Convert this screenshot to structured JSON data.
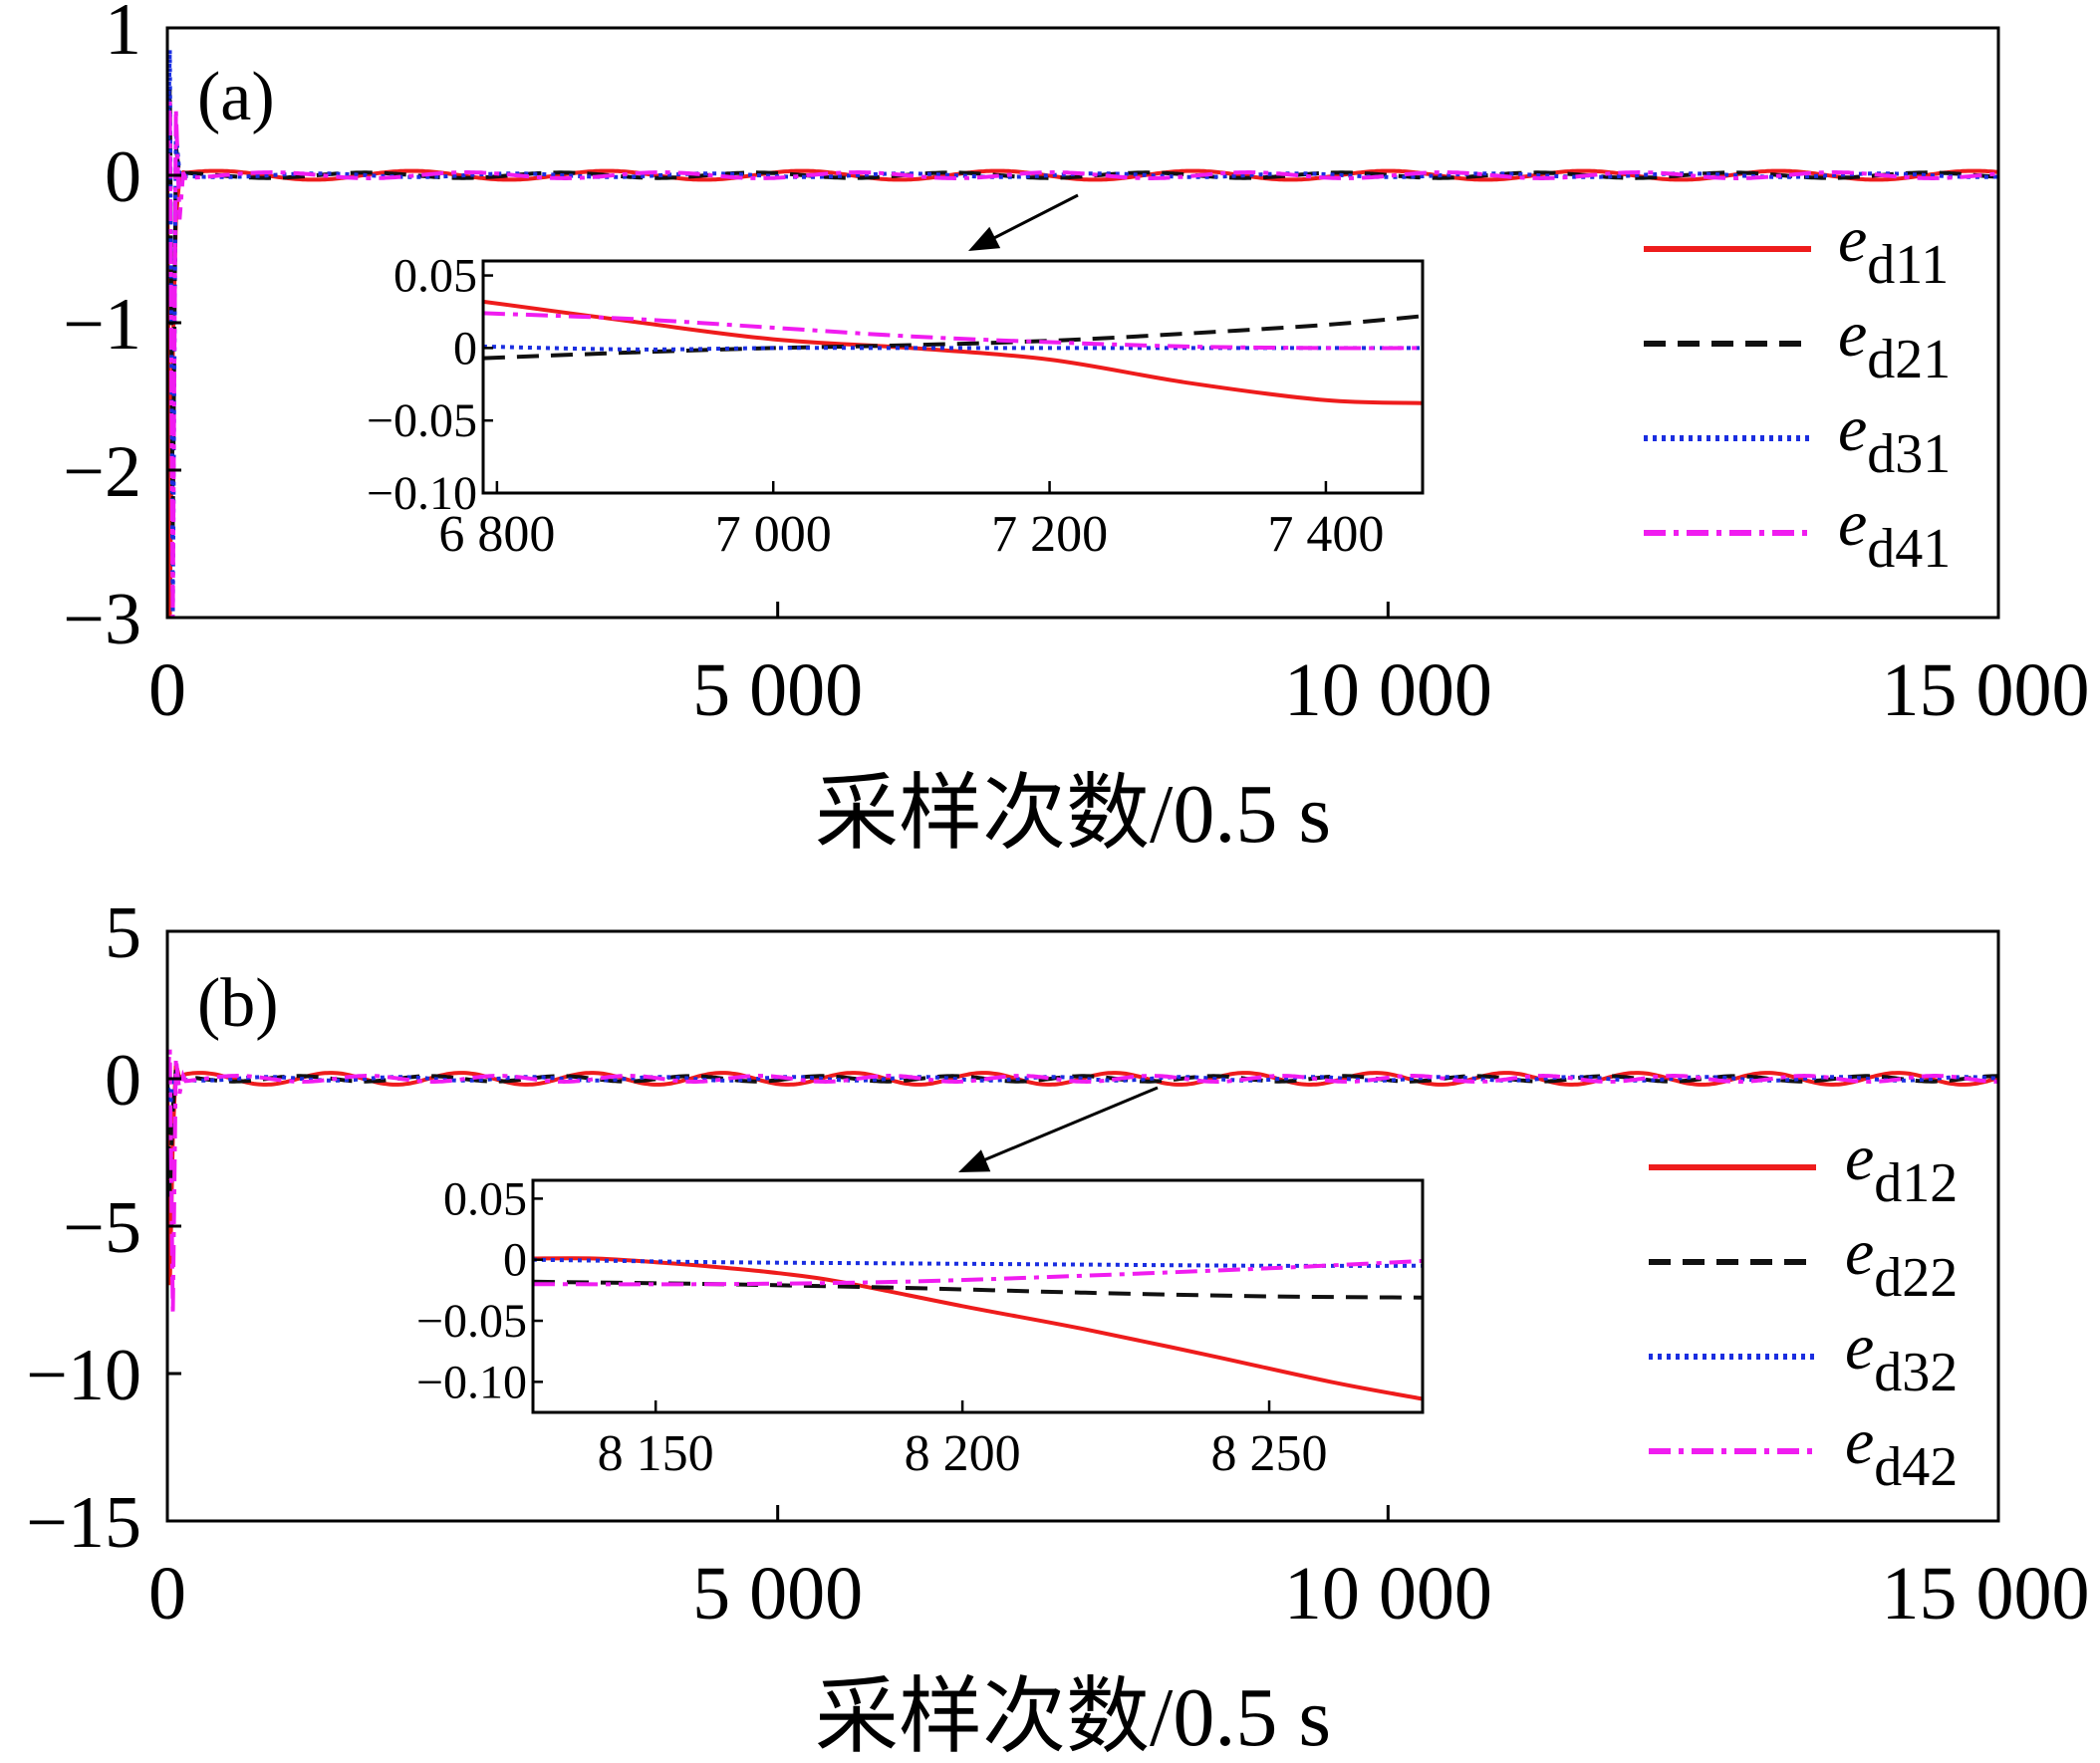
{
  "colors": {
    "red": "#ee1c1c",
    "black": "#111111",
    "blue": "#1a2ee0",
    "magenta": "#f01cf0"
  },
  "chart_data": [
    {
      "type": "line",
      "panel_label": "(a)",
      "xlabel": "采样次数/0.5 s",
      "xlim": [
        0,
        15000
      ],
      "ylim": [
        -3,
        1
      ],
      "xticks": [
        0,
        5000,
        10000,
        15000
      ],
      "xtick_labels": [
        "0",
        "5 000",
        "10 000",
        "15 000"
      ],
      "yticks": [
        1,
        0,
        -1,
        -2,
        -3
      ],
      "ytick_labels": [
        "1",
        "0",
        "−1",
        "−2",
        "−3"
      ],
      "legend_position": "right",
      "series": [
        {
          "name": "ed11",
          "base": "e",
          "sub": "d11",
          "color": "#ee1c1c",
          "dash": "solid",
          "transient": [
            0,
            -3,
            -1.2,
            -0.3,
            0,
            0.02
          ],
          "amp": 0.03,
          "period": 1600,
          "phase": 0
        },
        {
          "name": "ed21",
          "base": "e",
          "sub": "d21",
          "color": "#111111",
          "dash": "dashed",
          "transient": [
            0,
            0.6,
            -2.4,
            0.2,
            -0.01,
            0
          ],
          "amp": 0.018,
          "period": 1600,
          "phase": 1.5
        },
        {
          "name": "ed31",
          "base": "e",
          "sub": "d31",
          "color": "#1a2ee0",
          "dash": "dotted",
          "transient": [
            0,
            0.85,
            -3,
            0.3,
            0,
            0
          ],
          "amp": 0.012,
          "period": 1600,
          "phase": 3.0
        },
        {
          "name": "ed41",
          "base": "e",
          "sub": "d41",
          "color": "#f01cf0",
          "dash": "dashdot",
          "transient": [
            0,
            0.5,
            -3,
            0.45,
            -0.3,
            0.02
          ],
          "amp": 0.02,
          "period": 1600,
          "phase": 4.5
        }
      ],
      "inset": {
        "xlim": [
          6790,
          7470
        ],
        "ylim": [
          -0.1,
          0.06
        ],
        "xticks": [
          6800,
          7000,
          7200,
          7400
        ],
        "xtick_labels": [
          "6 800",
          "7 000",
          "7 200",
          "7 400"
        ],
        "yticks": [
          0.05,
          0,
          -0.05,
          -0.1
        ],
        "ytick_labels": [
          "0.05",
          "0",
          "−0.05",
          "−0.10"
        ],
        "series": [
          {
            "name": "ed11",
            "x": [
              6790,
              6900,
              7000,
              7100,
              7200,
              7300,
              7400,
              7470
            ],
            "y": [
              0.032,
              0.018,
              0.006,
              0.0,
              -0.008,
              -0.024,
              -0.036,
              -0.038
            ]
          },
          {
            "name": "ed21",
            "x": [
              6790,
              6900,
              7000,
              7100,
              7200,
              7300,
              7400,
              7470
            ],
            "y": [
              -0.007,
              -0.003,
              0.0,
              0.002,
              0.005,
              0.01,
              0.016,
              0.022
            ]
          },
          {
            "name": "ed31",
            "x": [
              6790,
              6900,
              7000,
              7100,
              7200,
              7300,
              7400,
              7470
            ],
            "y": [
              0.001,
              -0.001,
              0.0,
              0.0,
              0.0,
              0.0,
              0.0,
              0.0
            ]
          },
          {
            "name": "ed41",
            "x": [
              6790,
              6900,
              7000,
              7100,
              7200,
              7300,
              7400,
              7470
            ],
            "y": [
              0.024,
              0.02,
              0.014,
              0.008,
              0.004,
              0.001,
              0.0,
              0.0
            ]
          }
        ]
      }
    },
    {
      "type": "line",
      "panel_label": "(b)",
      "xlabel": "采样次数/0.5 s",
      "xlim": [
        0,
        15000
      ],
      "ylim": [
        -15,
        5
      ],
      "xticks": [
        0,
        5000,
        10000,
        15000
      ],
      "xtick_labels": [
        "0",
        "5 000",
        "10 000",
        "15 000"
      ],
      "yticks": [
        5,
        0,
        -5,
        -10,
        -15
      ],
      "ytick_labels": [
        "5",
        "0",
        "−5",
        "−10",
        "−15"
      ],
      "legend_position": "right",
      "series": [
        {
          "name": "ed12",
          "base": "e",
          "sub": "d12",
          "color": "#ee1c1c",
          "dash": "solid",
          "transient": [
            0,
            -7,
            -2,
            0.5,
            0,
            0.1
          ],
          "amp": 0.2,
          "period": 1070,
          "phase": 0
        },
        {
          "name": "ed22",
          "base": "e",
          "sub": "d22",
          "color": "#111111",
          "dash": "dashed",
          "transient": [
            0,
            -4,
            -1,
            0.3,
            0,
            0
          ],
          "amp": 0.09,
          "period": 1070,
          "phase": 1.5
        },
        {
          "name": "ed32",
          "base": "e",
          "sub": "d32",
          "color": "#1a2ee0",
          "dash": "dotted",
          "transient": [
            0,
            -1,
            -0.2,
            0.1,
            0,
            0
          ],
          "amp": 0.06,
          "period": 1070,
          "phase": 3.0
        },
        {
          "name": "ed42",
          "base": "e",
          "sub": "d42",
          "color": "#f01cf0",
          "dash": "dashdot",
          "transient": [
            0,
            1,
            -8,
            0.7,
            -0.5,
            0.1
          ],
          "amp": 0.1,
          "period": 1070,
          "phase": 4.5
        }
      ],
      "inset": {
        "xlim": [
          8130,
          8275
        ],
        "ylim": [
          -0.125,
          0.065
        ],
        "xticks": [
          8150,
          8200,
          8250
        ],
        "xtick_labels": [
          "8 150",
          "8 200",
          "8 250"
        ],
        "yticks": [
          0.05,
          0,
          -0.05,
          -0.1
        ],
        "ytick_labels": [
          "0.05",
          "0",
          "−0.05",
          "−0.10"
        ],
        "series": [
          {
            "name": "ed12",
            "x": [
              8130,
              8140,
              8150,
              8160,
              8170,
              8180,
              8200,
              8220,
              8240,
              8260,
              8275
            ],
            "y": [
              0.001,
              0.001,
              -0.002,
              -0.006,
              -0.011,
              -0.018,
              -0.038,
              -0.057,
              -0.078,
              -0.1,
              -0.114
            ]
          },
          {
            "name": "ed22",
            "x": [
              8130,
              8160,
              8190,
              8220,
              8250,
              8275
            ],
            "y": [
              -0.018,
              -0.02,
              -0.023,
              -0.027,
              -0.03,
              -0.031
            ]
          },
          {
            "name": "ed32",
            "x": [
              8130,
              8160,
              8190,
              8220,
              8250,
              8275
            ],
            "y": [
              0.0,
              -0.002,
              -0.003,
              -0.004,
              -0.005,
              -0.005
            ]
          },
          {
            "name": "ed42",
            "x": [
              8130,
              8160,
              8190,
              8220,
              8250,
              8275
            ],
            "y": [
              -0.02,
              -0.02,
              -0.018,
              -0.013,
              -0.007,
              -0.001
            ]
          }
        ]
      }
    }
  ]
}
